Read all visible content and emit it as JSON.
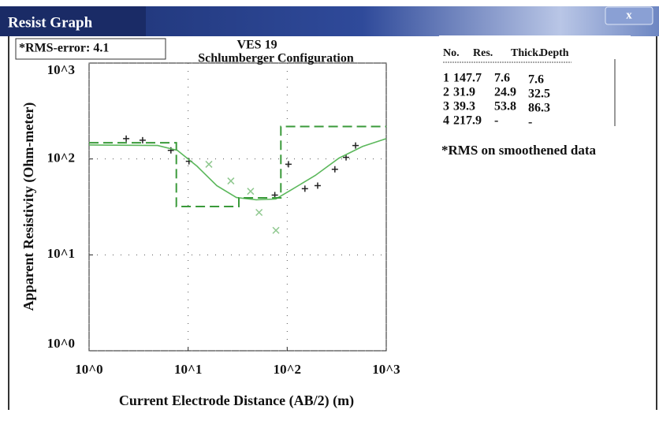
{
  "window": {
    "title": "Resist Graph",
    "close": "x",
    "rms_error": "*RMS-error: 4.1"
  },
  "chart_data": {
    "type": "line",
    "title": "VES 19",
    "subtitle": "Schlumberger Configuration",
    "x_label": "Current Electrode Distance (AB/2) (m)",
    "y_label": "Apparent Resistivity (Ohm-meter)",
    "log_x": true,
    "log_y": true,
    "grid": true,
    "xlim": [
      1,
      1000
    ],
    "ylim": [
      1,
      1000
    ],
    "xticks": [
      {
        "value": 1,
        "label": "10^0"
      },
      {
        "value": 10,
        "label": "10^1"
      },
      {
        "value": 100,
        "label": "10^2"
      },
      {
        "value": 1000,
        "label": "10^3"
      }
    ],
    "yticks": [
      {
        "value": 1,
        "label": "10^0"
      },
      {
        "value": 10,
        "label": "10^1"
      },
      {
        "value": 100,
        "label": "10^2"
      },
      {
        "value": 1000,
        "label": "10^3"
      }
    ],
    "series": [
      {
        "style": "plus",
        "color": "#222222",
        "x": [
          2.37,
          3.47,
          6.7,
          10.2,
          75,
          103,
          151,
          203,
          303,
          393,
          490
        ],
        "values": [
          163,
          157,
          123,
          94.5,
          42,
          88,
          49,
          52.7,
          78,
          104,
          138
        ]
      },
      {
        "style": "cross",
        "color": "#8fc88f",
        "x": [
          16.2,
          27,
          42.7,
          52,
          77
        ],
        "values": [
          88,
          59,
          46,
          27.7,
          18
        ]
      },
      {
        "style": "solid",
        "color": "#5cb85c",
        "x": [
          1,
          4.92,
          7.78,
          12.3,
          19.5,
          30.7,
          48.6,
          76.8,
          111,
          192,
          333,
          577,
          1000
        ],
        "values": [
          140,
          138,
          123,
          84,
          52.6,
          39.6,
          37.5,
          38.2,
          47.9,
          67.3,
          102,
          135,
          163
        ]
      },
      {
        "style": "dashed",
        "color": "#3a9a3a",
        "x": [
          1,
          7.6,
          7.6,
          32.5,
          32.5,
          86.3,
          86.3,
          1000
        ],
        "values": [
          147.7,
          147.7,
          31.9,
          31.9,
          39.3,
          39.3,
          217.9,
          217.9
        ]
      }
    ]
  },
  "table": {
    "headers": [
      "No.",
      "Res.",
      "Thick.",
      "Depth"
    ],
    "rows": [
      [
        "1",
        "147.7",
        "7.6",
        "7.6"
      ],
      [
        "2",
        "31.9",
        "24.9",
        "32.5"
      ],
      [
        "3",
        "39.3",
        "53.8",
        "86.3"
      ],
      [
        "4",
        "217.9",
        "-",
        "-"
      ]
    ]
  },
  "note": "*RMS on smoothened data"
}
